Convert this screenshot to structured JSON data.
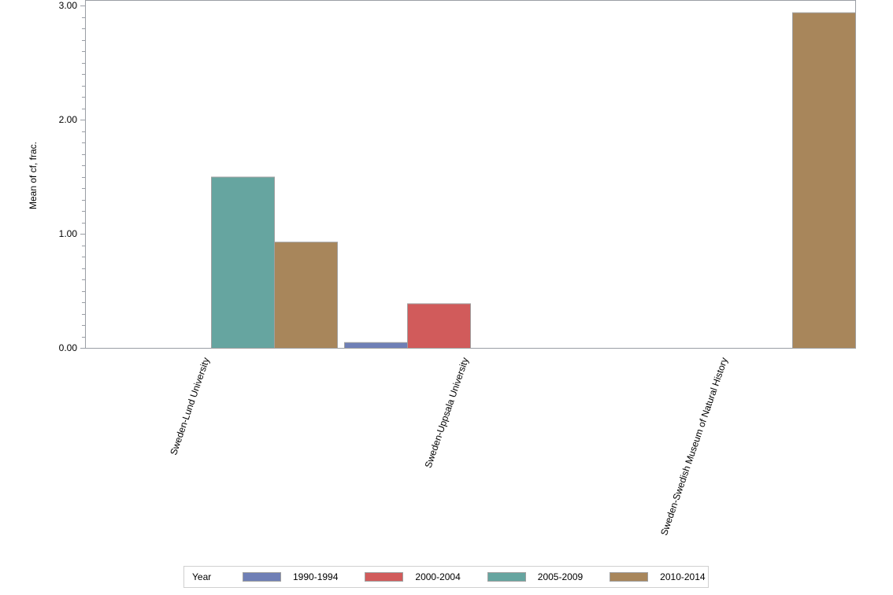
{
  "chart_data": {
    "type": "bar",
    "title": "",
    "xlabel": "",
    "ylabel": "Mean of cf, frac.",
    "ylim": [
      0,
      3.05
    ],
    "yticks": [
      "0.00",
      "1.00",
      "2.00",
      "3.00"
    ],
    "grid": false,
    "legend_position": "bottom",
    "legend_title": "Year",
    "categories": [
      "Sweden-Lund University",
      "Sweden-Uppsala University",
      "Sweden-Swedish Museum of Natural History"
    ],
    "series": [
      {
        "name": "1990-1994",
        "color": "#6f7fb6",
        "values": [
          null,
          0.05,
          null
        ]
      },
      {
        "name": "2000-2004",
        "color": "#d15b5b",
        "values": [
          null,
          0.39,
          null
        ]
      },
      {
        "name": "2005-2009",
        "color": "#66a5a0",
        "values": [
          1.5,
          null,
          null
        ]
      },
      {
        "name": "2010-2014",
        "color": "#a8865b",
        "values": [
          0.93,
          null,
          2.94
        ]
      }
    ]
  },
  "legend": {
    "title": "Year",
    "items": [
      {
        "label": "1990-1994",
        "color": "#6f7fb6"
      },
      {
        "label": "2000-2004",
        "color": "#d15b5b"
      },
      {
        "label": "2005-2009",
        "color": "#66a5a0"
      },
      {
        "label": "2010-2014",
        "color": "#a8865b"
      }
    ]
  }
}
